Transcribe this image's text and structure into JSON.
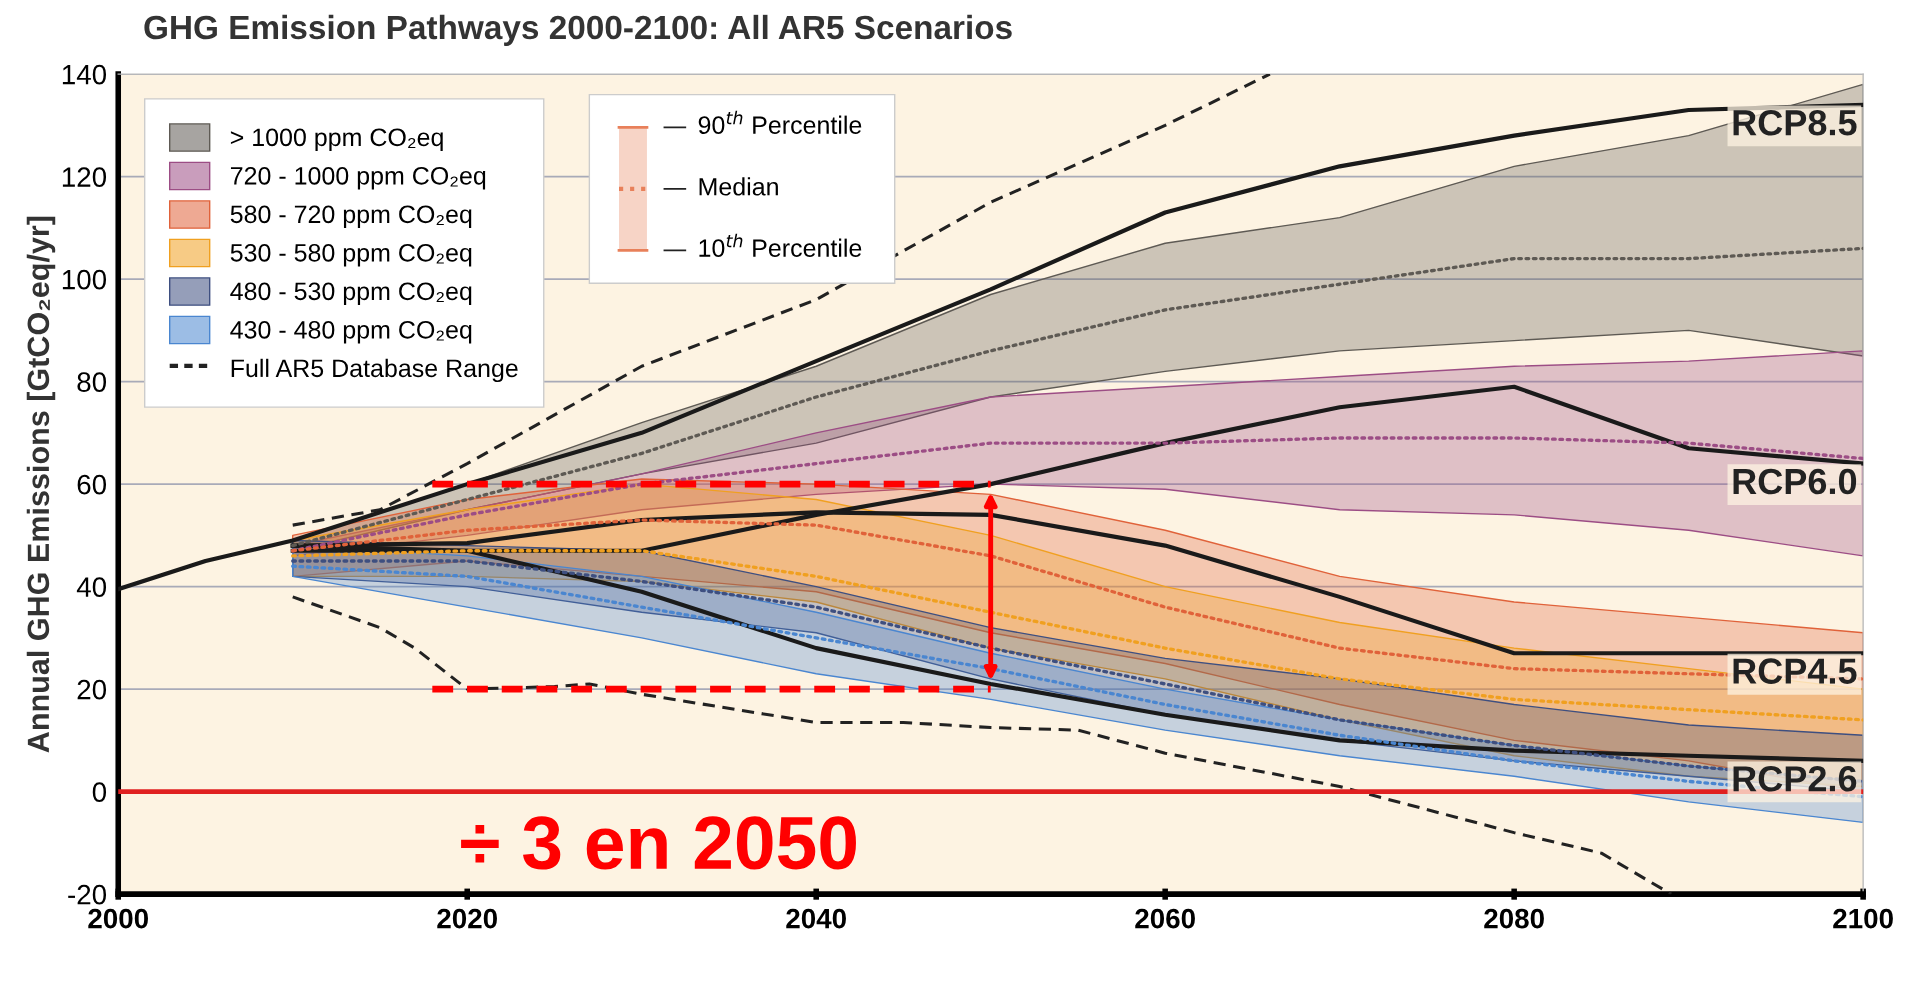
{
  "chart_data": {
    "type": "line",
    "title": "GHG Emission Pathways 2000-2100: All AR5 Scenarios",
    "ylabel": "Annual GHG Emissions [GtCO₂eq/yr]",
    "xlim": [
      2000,
      2100
    ],
    "xticks": [
      2000,
      2020,
      2040,
      2060,
      2080,
      2100
    ],
    "ylim": [
      -20,
      140
    ],
    "yticks": [
      -20,
      0,
      20,
      40,
      60,
      80,
      100,
      120,
      140
    ],
    "grid": "y",
    "legend": "top left",
    "ref_lines": [
      {
        "axis": "y",
        "value": 0,
        "color": "#e02020"
      }
    ],
    "annotations": [
      "90$^{th}$ Percentile",
      "Median",
      "10$^{th}$ Percentile",
      "÷ 3 en 2050"
    ],
    "series": [
      {
        "name": "> 1000 ppm CO₂eq",
        "line_style": "dotted",
        "color": "#5e5a54",
        "x": [
          2010,
          2020,
          2030,
          2040,
          2050,
          2060,
          2070,
          2080,
          2090,
          2100
        ],
        "values": [
          48,
          57,
          66,
          77,
          86,
          94,
          99,
          104,
          104,
          106
        ],
        "lower": [
          47,
          55,
          62,
          68,
          77,
          82,
          86,
          88,
          90,
          85
        ],
        "upper": [
          49,
          60,
          72,
          83,
          97,
          107,
          112,
          122,
          128,
          138
        ]
      },
      {
        "name": "720 - 1000 ppm CO₂eq",
        "line_style": "dotted",
        "color": "#9c4d85",
        "x": [
          2010,
          2020,
          2030,
          2040,
          2050,
          2060,
          2070,
          2080,
          2090,
          2100
        ],
        "values": [
          47,
          54,
          60,
          64,
          68,
          68,
          69,
          69,
          68,
          65
        ],
        "lower": [
          46,
          50,
          55,
          58,
          60,
          59,
          55,
          54,
          51,
          46
        ],
        "upper": [
          48,
          55,
          62,
          70,
          77,
          79,
          81,
          83,
          84,
          86
        ]
      },
      {
        "name": "580 - 720 ppm CO₂eq",
        "line_style": "dotted",
        "color": "#e0623a",
        "x": [
          2010,
          2020,
          2030,
          2040,
          2050,
          2060,
          2070,
          2080,
          2090,
          2100
        ],
        "values": [
          47,
          51,
          53,
          52,
          46,
          36,
          28,
          24,
          23,
          22
        ],
        "lower": [
          42,
          45,
          42,
          39,
          31,
          25,
          17,
          10,
          6,
          0
        ],
        "upper": [
          50,
          57,
          61,
          60,
          58,
          51,
          42,
          37,
          34,
          31
        ]
      },
      {
        "name": "530 - 580 ppm CO₂eq",
        "line_style": "dotted",
        "color": "#f0a020",
        "x": [
          2010,
          2020,
          2030,
          2040,
          2050,
          2060,
          2070,
          2080,
          2090,
          2100
        ],
        "values": [
          46,
          47,
          47,
          42,
          35,
          28,
          22,
          18,
          16,
          14
        ],
        "lower": [
          42,
          42,
          41,
          37,
          28,
          22,
          14,
          7,
          3,
          1
        ],
        "upper": [
          49,
          55,
          60,
          57,
          50,
          40,
          33,
          28,
          24,
          20
        ]
      },
      {
        "name": "480 - 530 ppm CO₂eq",
        "line_style": "dotted",
        "color": "#3e4f80",
        "x": [
          2010,
          2020,
          2030,
          2040,
          2050,
          2060,
          2070,
          2080,
          2090,
          2100
        ],
        "values": [
          45,
          45,
          41,
          36,
          28,
          21,
          14,
          9,
          5,
          2
        ],
        "lower": [
          42,
          40,
          35,
          31,
          22,
          15,
          10,
          6,
          3,
          0
        ],
        "upper": [
          49,
          48,
          47,
          40,
          32,
          26,
          22,
          17,
          13,
          11
        ]
      },
      {
        "name": "430 - 480 ppm CO₂eq",
        "line_style": "dotted",
        "color": "#4a86d0",
        "x": [
          2010,
          2020,
          2030,
          2040,
          2050,
          2060,
          2070,
          2080,
          2090,
          2100
        ],
        "values": [
          44,
          42,
          36,
          30,
          24,
          17,
          11,
          6,
          2,
          -1
        ],
        "lower": [
          42,
          36,
          30,
          23,
          18,
          12,
          7,
          3,
          -2,
          -6
        ],
        "upper": [
          48,
          46,
          42,
          35,
          27,
          20,
          14,
          9,
          5,
          2
        ]
      },
      {
        "name": "Full AR5 Database Range",
        "color": "#222222",
        "line_style": "dashed",
        "x": [
          2010,
          2015,
          2020,
          2030,
          2040,
          2050,
          2060,
          2066
        ],
        "values": [
          52,
          55,
          64,
          83,
          96,
          115,
          130,
          140
        ]
      },
      {
        "color": "#222222",
        "line_style": "dashed",
        "x": [
          2010,
          2015,
          2017,
          2020,
          2025,
          2027,
          2030,
          2040,
          2045,
          2050,
          2055,
          2060,
          2070,
          2080,
          2085,
          2089
        ],
        "values": [
          38,
          32,
          28,
          20,
          20.5,
          21,
          19,
          13.5,
          13.5,
          12.5,
          12,
          7.5,
          1,
          -8,
          -12,
          -20
        ]
      },
      {
        "name": "RCP8.5",
        "color": "#1a1a1a",
        "line_style": "solid",
        "x": [
          2000,
          2005,
          2010,
          2020,
          2030,
          2040,
          2050,
          2060,
          2070,
          2080,
          2090,
          2100
        ],
        "values": [
          39.5,
          45,
          49,
          60,
          70,
          84,
          98,
          113,
          122,
          128,
          133,
          134
        ]
      },
      {
        "name": "RCP6.0",
        "color": "#1a1a1a",
        "line_style": "solid",
        "x": [
          2010,
          2020,
          2030,
          2040,
          2050,
          2060,
          2070,
          2080,
          2090,
          2100
        ],
        "values": [
          47,
          47,
          47,
          54,
          60,
          68,
          75,
          79,
          67,
          64
        ]
      },
      {
        "name": "RCP4.5",
        "color": "#1a1a1a",
        "line_style": "solid",
        "x": [
          2010,
          2020,
          2030,
          2040,
          2050,
          2060,
          2070,
          2080,
          2090,
          2100
        ],
        "values": [
          48,
          48.5,
          53,
          54.5,
          54,
          48,
          38,
          27,
          27,
          27
        ]
      },
      {
        "name": "RCP2.6",
        "color": "#1a1a1a",
        "line_style": "solid",
        "x": [
          2010,
          2020,
          2030,
          2040,
          2050,
          2060,
          2070,
          2080,
          2090,
          2100
        ],
        "values": [
          48,
          47,
          39,
          28,
          21,
          15,
          10,
          8,
          7,
          6
        ]
      },
      {
        "color": "#ff0000",
        "line_style": "dashed",
        "x": [
          2018,
          2050
        ],
        "values": [
          60,
          60
        ]
      },
      {
        "color": "#ff0000",
        "line_style": "dashed",
        "x": [
          2018,
          2050
        ],
        "values": [
          20,
          20
        ]
      }
    ]
  }
}
